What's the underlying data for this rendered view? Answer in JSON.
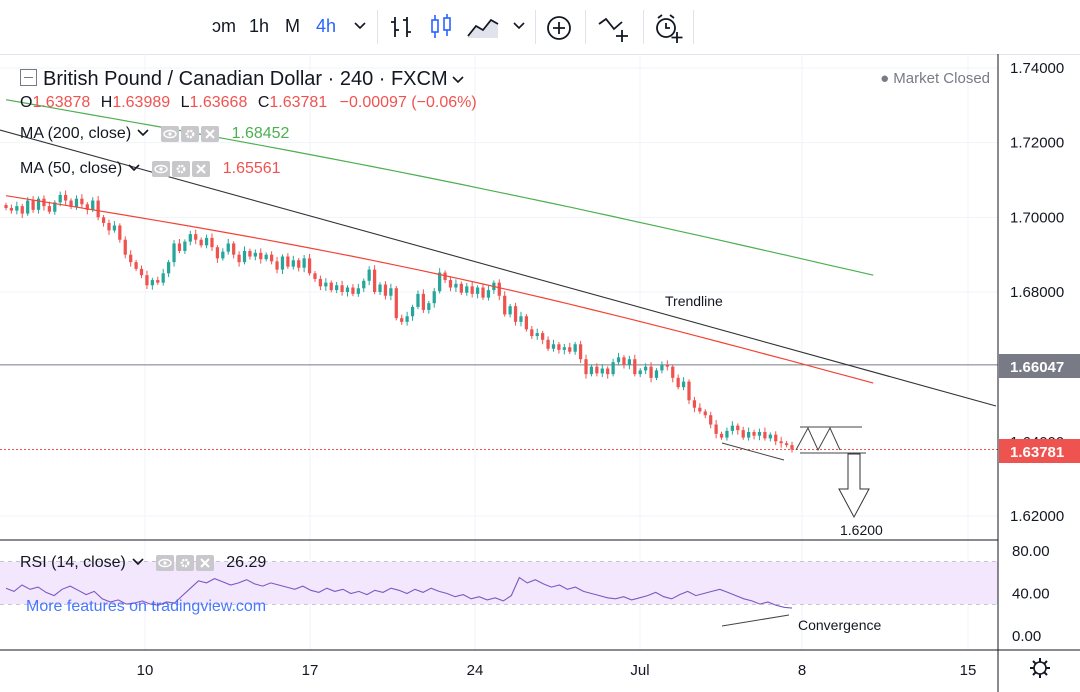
{
  "toolbar": {
    "intervals": [
      "ɔm",
      "1h",
      "M",
      "4h"
    ],
    "active_interval": "4h",
    "icons": [
      "chevron-down-icon",
      "bar-style-icon",
      "candle-style-icon",
      "area-style-icon",
      "chevron-down-icon",
      "add-compare-icon",
      "add-indicator-icon",
      "alert-icon"
    ]
  },
  "header": {
    "symbol_title": "British Pound / Canadian Dollar · 240 · FXCM",
    "market_status": "Market Closed",
    "ohlc": {
      "o_label": "O",
      "o": "1.63878",
      "h_label": "H",
      "h": "1.63989",
      "l_label": "L",
      "l": "1.63668",
      "c_label": "C",
      "c": "1.63781",
      "change": "−0.00097 (−0.06%)"
    }
  },
  "indicators": {
    "ma200": {
      "label": "MA (200, close)",
      "value": "1.68452",
      "color": "#4caf50"
    },
    "ma50": {
      "label": "MA (50, close)",
      "value": "1.65561",
      "color": "#f44336"
    },
    "rsi": {
      "label": "RSI (14, close)",
      "value": "26.29",
      "color": "#7e57c2"
    }
  },
  "watermark": "More features on tradingview.com",
  "annotations": {
    "trendline_label": "Trendline",
    "target_label": "1.6200",
    "convergence_label": "Convergence"
  },
  "price_axis": {
    "ticks": [
      "1.74000",
      "1.72000",
      "1.70000",
      "1.68000",
      "1.66000",
      "1.62000"
    ],
    "level_label": "1.66047",
    "last_price_label": "1.63781",
    "hidden_label": "1.64000"
  },
  "rsi_axis": {
    "ticks": [
      "80.00",
      "40.00",
      "0.00"
    ]
  },
  "time_axis": {
    "ticks": [
      "10",
      "17",
      "24",
      "Jul",
      "8",
      "15"
    ]
  },
  "chart_data": [
    {
      "type": "candlestick",
      "title": "British Pound / Canadian Dollar · 240 · FXCM",
      "x_ticks": [
        "10",
        "17",
        "24",
        "Jul",
        "8",
        "15"
      ],
      "ylim": [
        1.612,
        1.744
      ],
      "closes": [
        1.7025,
        1.7018,
        1.703,
        1.701,
        1.7045,
        1.702,
        1.705,
        1.703,
        1.7015,
        1.704,
        1.706,
        1.7045,
        1.7028,
        1.705,
        1.7035,
        1.702,
        1.7045,
        1.7,
        1.6985,
        1.6965,
        1.6978,
        1.694,
        1.69,
        1.688,
        1.6862,
        1.6845,
        1.6818,
        1.6832,
        1.6825,
        1.685,
        1.688,
        1.693,
        1.691,
        1.6935,
        1.6955,
        1.694,
        1.6925,
        1.6945,
        1.692,
        1.689,
        1.6908,
        1.693,
        1.69,
        1.688,
        1.691,
        1.6895,
        1.6905,
        1.6888,
        1.69,
        1.6882,
        1.686,
        1.6895,
        1.6868,
        1.6885,
        1.6865,
        1.689,
        1.685,
        1.6835,
        1.6815,
        1.6825,
        1.6805,
        1.6818,
        1.68,
        1.6812,
        1.6795,
        1.681,
        1.683,
        1.686,
        1.68,
        1.682,
        1.679,
        1.681,
        1.673,
        1.672,
        1.6735,
        1.676,
        1.6795,
        1.6752,
        1.677,
        1.6802,
        1.6852,
        1.6832,
        1.6812,
        1.6822,
        1.6798,
        1.6815,
        1.6795,
        1.6812,
        1.6785,
        1.6805,
        1.6825,
        1.679,
        1.674,
        1.6762,
        1.672,
        1.6735,
        1.67,
        1.6682,
        1.669,
        1.6672,
        1.6648,
        1.666,
        1.6645,
        1.6652,
        1.664,
        1.666,
        1.662,
        1.658,
        1.66,
        1.6582,
        1.6595,
        1.658,
        1.6612,
        1.6625,
        1.6605,
        1.662,
        1.658,
        1.659,
        1.66,
        1.657,
        1.659,
        1.6605,
        1.66,
        1.657,
        1.6545,
        1.656,
        1.651,
        1.649,
        1.648,
        1.647,
        1.6445,
        1.642,
        1.641,
        1.6428,
        1.6442,
        1.643,
        1.641,
        1.6425,
        1.6415,
        1.6425,
        1.6408,
        1.6418,
        1.64,
        1.6395,
        1.639,
        1.6378
      ]
    },
    {
      "type": "line",
      "series": [
        {
          "name": "MA (200, close)",
          "x_start": 0,
          "x_end": 160,
          "y_start": 1.7315,
          "y_end": 1.6845
        },
        {
          "name": "MA (50, close)",
          "x_start": 0,
          "x_end": 160,
          "y_start": 1.7058,
          "y_end": 1.6556
        }
      ]
    },
    {
      "type": "line",
      "title": "RSI (14, close)",
      "ylim": [
        -5,
        95
      ],
      "band": [
        30,
        70
      ],
      "y_ticks": [
        80,
        40,
        0
      ],
      "values": [
        45,
        42,
        48,
        44,
        46,
        41,
        38,
        44,
        47,
        43,
        39,
        42,
        35,
        32,
        34,
        30,
        31,
        33,
        30,
        29,
        32,
        31,
        38,
        45,
        52,
        50,
        54,
        51,
        48,
        50,
        53,
        49,
        47,
        50,
        48,
        46,
        44,
        47,
        43,
        41,
        45,
        42,
        44,
        40,
        42,
        39,
        43,
        41,
        45,
        43,
        40,
        44,
        41,
        45,
        42,
        40,
        37,
        39,
        35,
        37,
        34,
        36,
        33,
        38,
        55,
        50,
        53,
        49,
        46,
        48,
        44,
        46,
        42,
        40,
        38,
        36,
        35,
        37,
        34,
        36,
        38,
        41,
        37,
        35,
        39,
        42,
        38,
        40,
        42,
        44,
        41,
        38,
        35,
        33,
        30,
        32,
        29,
        27,
        26.29
      ]
    }
  ]
}
